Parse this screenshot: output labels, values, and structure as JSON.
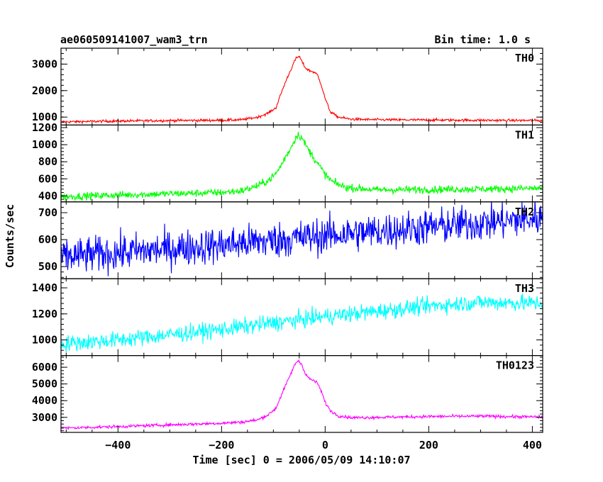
{
  "chart_data": {
    "type": "line",
    "title": "ae060509141007_wam3_trn",
    "bin_time_label": "Bin time: 1.0 s",
    "xlabel": "Time [sec] 0 = 2006/05/09 14:10:07",
    "ylabel": "Counts/sec",
    "xlim": [
      -510,
      420
    ],
    "x_ticks": [
      -400,
      -200,
      0,
      200,
      400
    ],
    "x_tick_labels": [
      "−400",
      "−200",
      "0",
      "200",
      "400"
    ],
    "panels": [
      {
        "name": "TH0",
        "color": "#ff0000",
        "ylim": [
          700,
          3600
        ],
        "y_ticks": [
          1000,
          2000,
          3000
        ],
        "y_tick_labels": [
          "1000",
          "2000",
          "3000"
        ],
        "profile": {
          "x": [
            -510,
            -400,
            -300,
            -200,
            -160,
            -130,
            -110,
            -95,
            -85,
            -75,
            -65,
            -57,
            -50,
            -45,
            -38,
            -30,
            -22,
            -15,
            -8,
            0,
            10,
            25,
            50,
            100,
            200,
            300,
            420
          ],
          "y": [
            820,
            850,
            870,
            880,
            900,
            1000,
            1150,
            1350,
            1900,
            2400,
            2850,
            3200,
            3300,
            3100,
            2850,
            2750,
            2700,
            2600,
            2250,
            1700,
            1200,
            1000,
            920,
            900,
            890,
            880,
            870
          ]
        },
        "noise": 25
      },
      {
        "name": "TH1",
        "color": "#00ff00",
        "ylim": [
          330,
          1230
        ],
        "y_ticks": [
          400,
          600,
          800,
          1000,
          1200
        ],
        "y_tick_labels": [
          "400",
          "600",
          "800",
          "1000",
          "1200"
        ],
        "profile": {
          "x": [
            -510,
            -400,
            -300,
            -200,
            -160,
            -130,
            -110,
            -95,
            -85,
            -75,
            -65,
            -57,
            -52,
            -45,
            -38,
            -30,
            -20,
            -10,
            0,
            15,
            40,
            100,
            200,
            300,
            420
          ],
          "y": [
            390,
            410,
            425,
            440,
            460,
            520,
            580,
            660,
            760,
            870,
            980,
            1080,
            1120,
            1080,
            1000,
            920,
            830,
            740,
            650,
            560,
            500,
            470,
            475,
            480,
            490
          ]
        },
        "noise": 22
      },
      {
        "name": "TH2",
        "color": "#0000ff",
        "ylim": [
          455,
          740
        ],
        "y_ticks": [
          500,
          600,
          700
        ],
        "y_tick_labels": [
          "500",
          "600",
          "700"
        ],
        "profile": {
          "x": [
            -510,
            -200,
            0,
            420
          ],
          "y": [
            535,
            580,
            615,
            680
          ]
        },
        "noise": 34
      },
      {
        "name": "TH3",
        "color": "#00ffff",
        "ylim": [
          880,
          1470
        ],
        "y_ticks": [
          1000,
          1200,
          1400
        ],
        "y_tick_labels": [
          "1000",
          "1200",
          "1400"
        ],
        "profile": {
          "x": [
            -510,
            -400,
            -200,
            0,
            200,
            300,
            420
          ],
          "y": [
            970,
            1000,
            1080,
            1180,
            1260,
            1290,
            1280
          ]
        },
        "noise": 32
      },
      {
        "name": "TH0123",
        "color": "#ff00ff",
        "ylim": [
          2100,
          6700
        ],
        "y_ticks": [
          3000,
          4000,
          5000,
          6000
        ],
        "y_tick_labels": [
          "3000",
          "4000",
          "5000",
          "6000"
        ],
        "profile": {
          "x": [
            -510,
            -400,
            -300,
            -200,
            -160,
            -130,
            -110,
            -95,
            -85,
            -75,
            -65,
            -57,
            -52,
            -45,
            -38,
            -30,
            -22,
            -15,
            -8,
            0,
            10,
            25,
            50,
            100,
            200,
            300,
            420
          ],
          "y": [
            2350,
            2450,
            2550,
            2650,
            2720,
            2850,
            3150,
            3550,
            4300,
            5000,
            5700,
            6250,
            6400,
            6150,
            5600,
            5300,
            5200,
            5050,
            4600,
            3900,
            3400,
            3100,
            2980,
            3000,
            3050,
            3070,
            3020
          ]
        },
        "noise": 45
      }
    ]
  }
}
